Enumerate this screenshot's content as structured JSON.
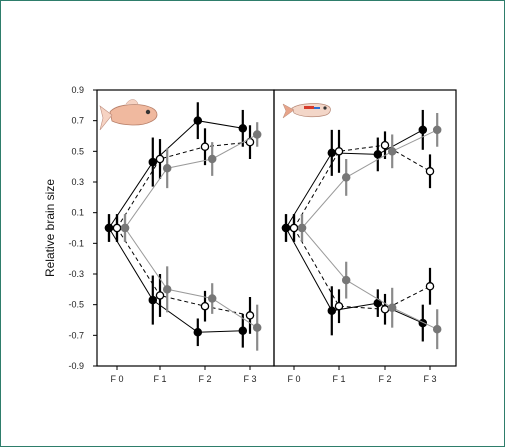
{
  "chart_data": {
    "type": "line",
    "ylabel": "Relative brain size",
    "ylim": [
      -0.9,
      0.9
    ],
    "yticks": [
      "0.9",
      "0.7",
      "0.5",
      "0.3",
      "0.1",
      "-0.1",
      "-0.3",
      "-0.5",
      "-0.7",
      "-0.9"
    ],
    "yticks_values": [
      0.9,
      0.7,
      0.5,
      0.3,
      0.1,
      -0.1,
      -0.3,
      -0.5,
      -0.7,
      -0.9
    ],
    "categories": [
      "F 0",
      "F 1",
      "F 2",
      "F 3"
    ],
    "legend": "none",
    "grid": false,
    "series_style": {
      "filled_black": {
        "marker": "filled",
        "color": "#000000",
        "line": "solid"
      },
      "open": {
        "marker": "open",
        "color": "#000000",
        "line": "dashed"
      },
      "gray": {
        "marker": "filled",
        "color": "#777777",
        "line": "solid",
        "line_color": "#9a9a9a"
      }
    },
    "panels": [
      {
        "icon": "guppy-female-icon",
        "series": [
          {
            "style": "filled_black",
            "values": [
              0.0,
              0.43,
              0.7,
              0.65
            ],
            "err": [
              0.09,
              0.16,
              0.12,
              0.12
            ]
          },
          {
            "style": "open",
            "values": [
              0.0,
              0.45,
              0.53,
              0.56
            ],
            "err": [
              0.09,
              0.13,
              0.12,
              0.11
            ]
          },
          {
            "style": "gray",
            "values": [
              0.0,
              0.39,
              0.45,
              0.61
            ],
            "err": [
              0.09,
              0.13,
              0.11,
              0.08
            ]
          },
          {
            "style": "filled_black",
            "values": [
              0.0,
              -0.47,
              -0.68,
              -0.67
            ],
            "err": [
              0.09,
              0.16,
              0.09,
              0.11
            ]
          },
          {
            "style": "open",
            "values": [
              0.0,
              -0.44,
              -0.51,
              -0.57
            ],
            "err": [
              0.09,
              0.14,
              0.1,
              0.12
            ]
          },
          {
            "style": "gray",
            "values": [
              0.0,
              -0.4,
              -0.46,
              -0.65
            ],
            "err": [
              0.09,
              0.15,
              0.1,
              0.15
            ]
          }
        ]
      },
      {
        "icon": "guppy-male-icon",
        "series": [
          {
            "style": "filled_black",
            "values": [
              0.0,
              0.49,
              0.48,
              0.64
            ],
            "err": [
              0.09,
              0.15,
              0.11,
              0.13
            ]
          },
          {
            "style": "open",
            "values": [
              0.0,
              0.5,
              0.54,
              0.37
            ],
            "err": [
              0.09,
              0.14,
              0.09,
              0.11
            ]
          },
          {
            "style": "gray",
            "values": [
              0.0,
              0.33,
              0.5,
              0.64
            ],
            "err": [
              0.09,
              0.12,
              0.11,
              0.11
            ]
          },
          {
            "style": "filled_black",
            "values": [
              0.0,
              -0.54,
              -0.49,
              -0.62
            ],
            "err": [
              0.09,
              0.16,
              0.09,
              0.12
            ]
          },
          {
            "style": "open",
            "values": [
              0.0,
              -0.51,
              -0.53,
              -0.38
            ],
            "err": [
              0.09,
              0.11,
              0.1,
              0.12
            ]
          },
          {
            "style": "gray",
            "values": [
              0.0,
              -0.34,
              -0.52,
              -0.66
            ],
            "err": [
              0.09,
              0.12,
              0.13,
              0.13
            ]
          }
        ]
      }
    ]
  }
}
